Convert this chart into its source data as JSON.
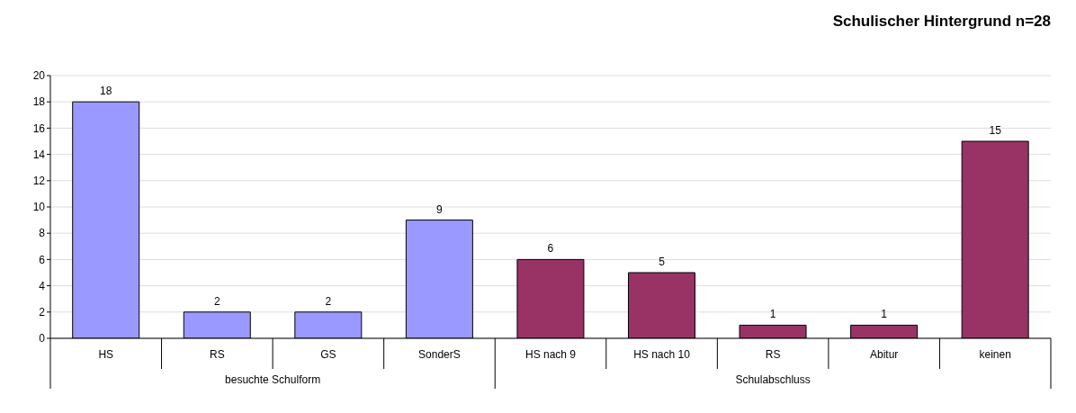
{
  "chart_data": {
    "type": "bar",
    "title": "Schulischer Hintergrund n=28",
    "categories": [
      "HS",
      "RS",
      "GS",
      "SonderS",
      "HS nach 9",
      "HS nach 10",
      "RS",
      "Abitur",
      "keinen"
    ],
    "values": [
      18,
      2,
      2,
      9,
      6,
      5,
      1,
      1,
      15
    ],
    "colors": [
      "#9999ff",
      "#9999ff",
      "#9999ff",
      "#9999ff",
      "#993366",
      "#993366",
      "#993366",
      "#993366",
      "#993366"
    ],
    "annotations": [
      "besuchte Schulform",
      "Schulabschluss"
    ],
    "ylim": [
      0,
      20
    ],
    "yticks": [
      0,
      2,
      4,
      6,
      8,
      10,
      12,
      14,
      16,
      18,
      20
    ],
    "grid": "y",
    "data_labels": true
  }
}
